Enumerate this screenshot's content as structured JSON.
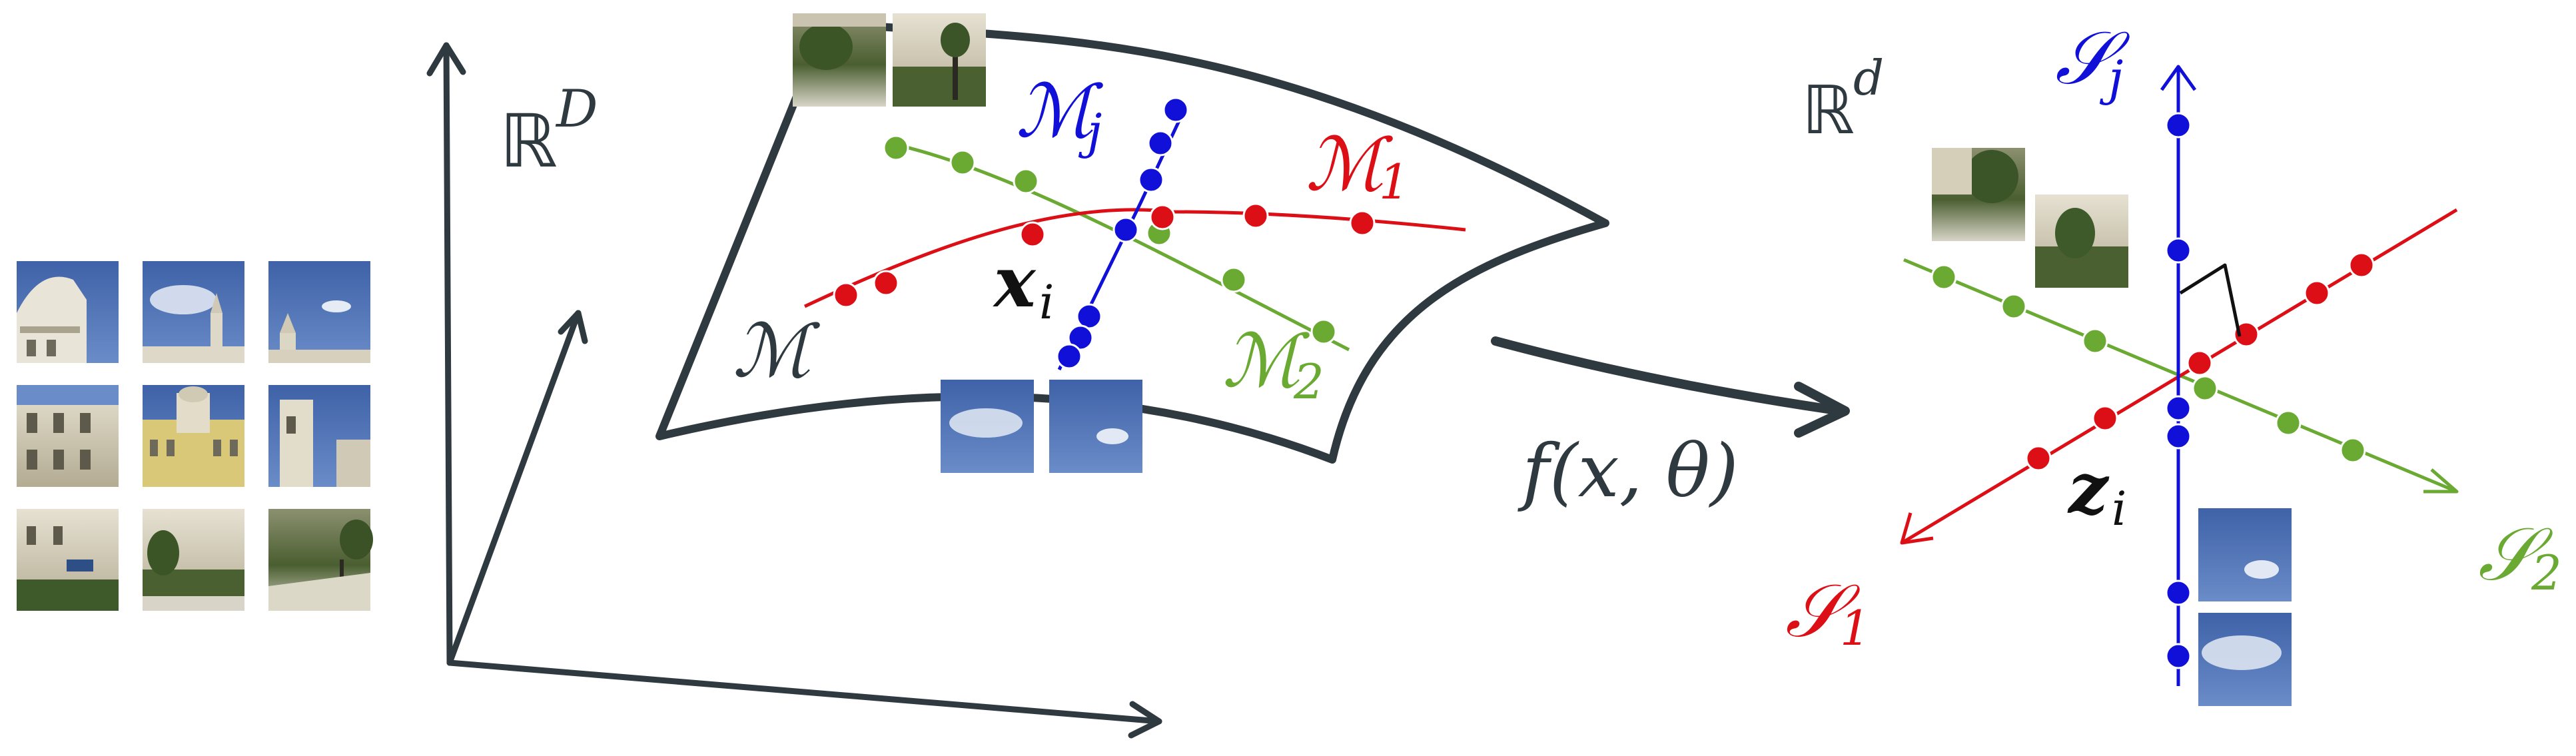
{
  "labels": {
    "ambient_space": "ℝ",
    "ambient_exp": "D",
    "latent_space": "ℝ",
    "latent_exp": "d",
    "manifold": "ℳ",
    "manifold_j_base": "ℳ",
    "manifold_j_sub": "j",
    "manifold_1_base": "ℳ",
    "manifold_1_sub": "1",
    "manifold_2_base": "ℳ",
    "manifold_2_sub": "2",
    "xi_base": "x",
    "xi_sub": "i",
    "function": "f(x, θ)",
    "zi_base": "z",
    "zi_sub": "i",
    "s1_base": "𝒮",
    "s1_sub": "1",
    "s2_base": "𝒮",
    "s2_sub": "2",
    "sj_base": "𝒮",
    "sj_sub": "j"
  },
  "colors": {
    "axis": "#2f3a40",
    "red": "#dd0f16",
    "green": "#6aaa33",
    "blue": "#1010d8",
    "sky": "#4a6aac",
    "building": "#c9c3b0",
    "hedge": "#3f5a2a"
  }
}
